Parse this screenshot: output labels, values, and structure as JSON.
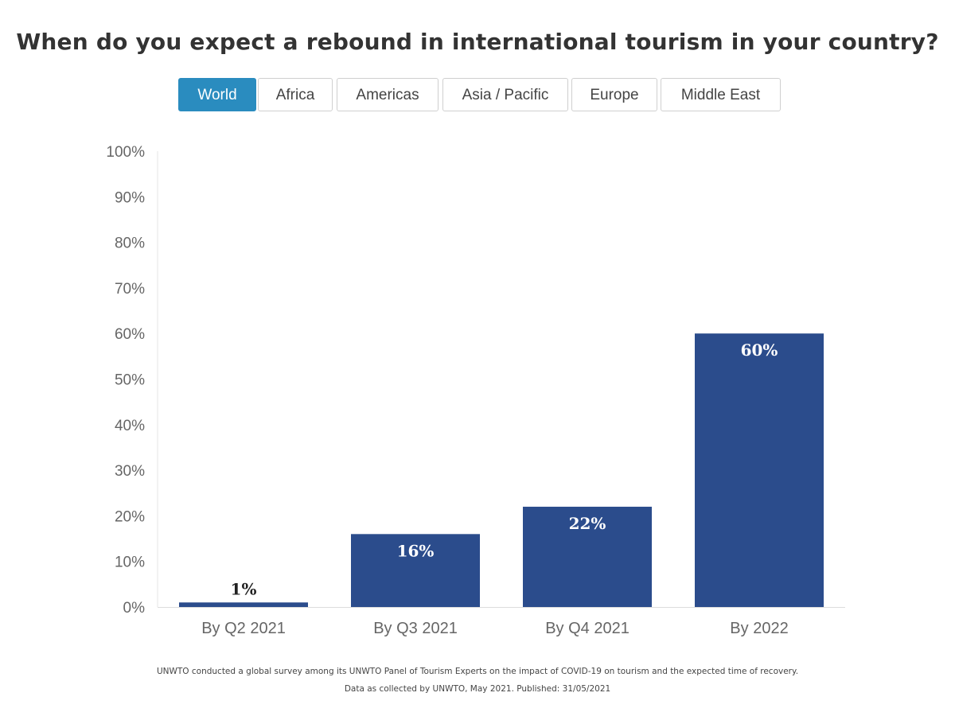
{
  "tabs": [
    {
      "label": "World",
      "active": true
    },
    {
      "label": "Africa",
      "active": false
    },
    {
      "label": "Americas",
      "active": false
    },
    {
      "label": "Asia / Pacific",
      "active": false
    },
    {
      "label": "Europe",
      "active": false
    },
    {
      "label": "Middle East",
      "active": false
    }
  ],
  "colors": {
    "bar": "#2b4c8c",
    "active_tab": "#2a8cbf",
    "axis_text": "#666666",
    "title_text": "#333333"
  },
  "chart_data": {
    "type": "bar",
    "title": "When do you expect a rebound in international tourism in your country?",
    "categories": [
      "By Q2 2021",
      "By Q3 2021",
      "By Q4 2021",
      "By 2022"
    ],
    "values": [
      1,
      16,
      22,
      60
    ],
    "data_labels": [
      "1%",
      "16%",
      "22%",
      "60%"
    ],
    "ylim": [
      0,
      100
    ],
    "yticks": [
      "0%",
      "10%",
      "20%",
      "30%",
      "40%",
      "50%",
      "60%",
      "70%",
      "80%",
      "90%",
      "100%"
    ],
    "xlabel": "",
    "ylabel": "",
    "grid": false,
    "legend": "none"
  },
  "footer": {
    "line1": "UNWTO conducted a global survey among its UNWTO Panel of Tourism Experts on the impact of COVID-19 on tourism and the expected time of recovery.",
    "line2": "Data as collected by UNWTO, May 2021. Published: 31/05/2021"
  }
}
